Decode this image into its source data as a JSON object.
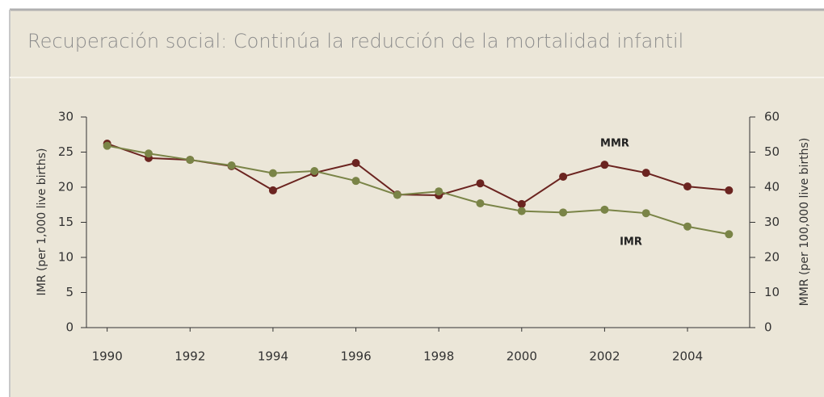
{
  "chart_data": {
    "type": "line",
    "title": "Recuperación social: Continúa la reducción de la mortalidad infantil",
    "y_label": "IMR (per 1,000 live births)",
    "y2_label": "MMR (per 100,000 live births)",
    "annotations": [
      "MMR",
      "IMR"
    ],
    "x": [
      1990,
      1991,
      1992,
      1993,
      1994,
      1995,
      1996,
      1997,
      1998,
      1999,
      2000,
      2001,
      2002,
      2003,
      2004,
      2005
    ],
    "xlim": [
      1989.5,
      2005.5
    ],
    "xticks": [
      1990,
      1992,
      1994,
      1996,
      1998,
      2000,
      2002,
      2004
    ],
    "ylim": [
      0,
      30
    ],
    "yticks": [
      0,
      5,
      10,
      15,
      20,
      25,
      30
    ],
    "y2lim": [
      0,
      60
    ],
    "y2ticks": [
      0,
      10,
      20,
      30,
      40,
      50,
      60
    ],
    "series": [
      {
        "name": "MMR",
        "color": "#6b2420",
        "axis": "y2",
        "values": [
          52.4,
          48.3,
          47.8,
          46,
          39.1,
          44.1,
          46.9,
          37.9,
          37.7,
          41.1,
          35.2,
          43,
          46.4,
          44.1,
          40.2,
          39.1
        ]
      },
      {
        "name": "IMR",
        "color": "#7a8447",
        "axis": "y",
        "values": [
          25.9,
          24.8,
          23.9,
          23.1,
          22,
          22.3,
          20.9,
          18.9,
          19.4,
          17.7,
          16.6,
          16.4,
          16.8,
          16.3,
          14.4,
          13.3
        ]
      }
    ]
  }
}
